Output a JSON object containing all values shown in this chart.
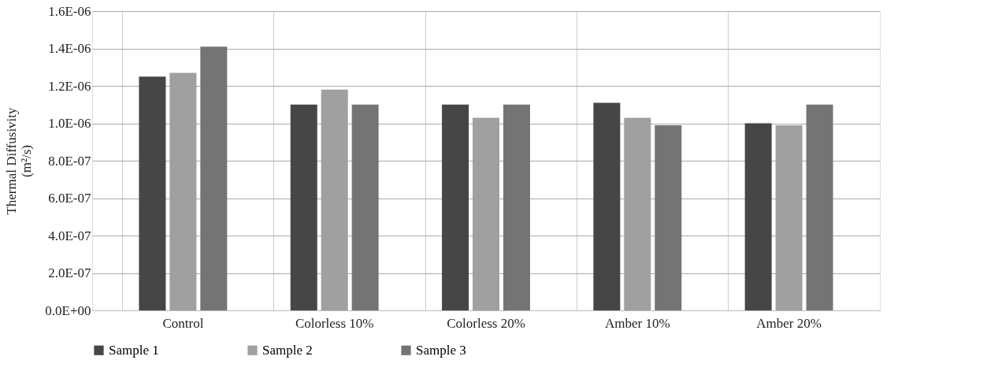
{
  "chart_data": {
    "type": "bar",
    "ylabel": "Thermal Diffusivity\n(m²/s)",
    "categories": [
      "Control",
      "Colorless 10%",
      "Colorless 20%",
      "Amber 10%",
      "Amber 20%"
    ],
    "series": [
      {
        "name": "Sample 1",
        "color": "#464646",
        "values": [
          1.25e-06,
          1.1e-06,
          1.1e-06,
          1.11e-06,
          1e-06
        ]
      },
      {
        "name": "Sample 2",
        "color": "#a0a0a0",
        "values": [
          1.27e-06,
          1.18e-06,
          1.03e-06,
          1.03e-06,
          9.9e-07
        ]
      },
      {
        "name": "Sample 3",
        "color": "#747474",
        "values": [
          1.41e-06,
          1.1e-06,
          1.1e-06,
          9.9e-07,
          1.1e-06
        ]
      }
    ],
    "ylim": [
      0,
      1.6e-06
    ],
    "yticks": [
      {
        "value": 0,
        "label": "0.0E+00"
      },
      {
        "value": 2e-07,
        "label": "2.0E-07"
      },
      {
        "value": 4e-07,
        "label": "4.0E-07"
      },
      {
        "value": 6e-07,
        "label": "6.0E-07"
      },
      {
        "value": 8e-07,
        "label": "8.0E-07"
      },
      {
        "value": 1e-06,
        "label": "1.0E-06"
      },
      {
        "value": 1.2e-06,
        "label": "1.2E-06"
      },
      {
        "value": 1.4e-06,
        "label": "1.4E-06"
      },
      {
        "value": 1.6e-06,
        "label": "1.6E-06"
      }
    ],
    "grid": true,
    "legend": "bottom"
  }
}
